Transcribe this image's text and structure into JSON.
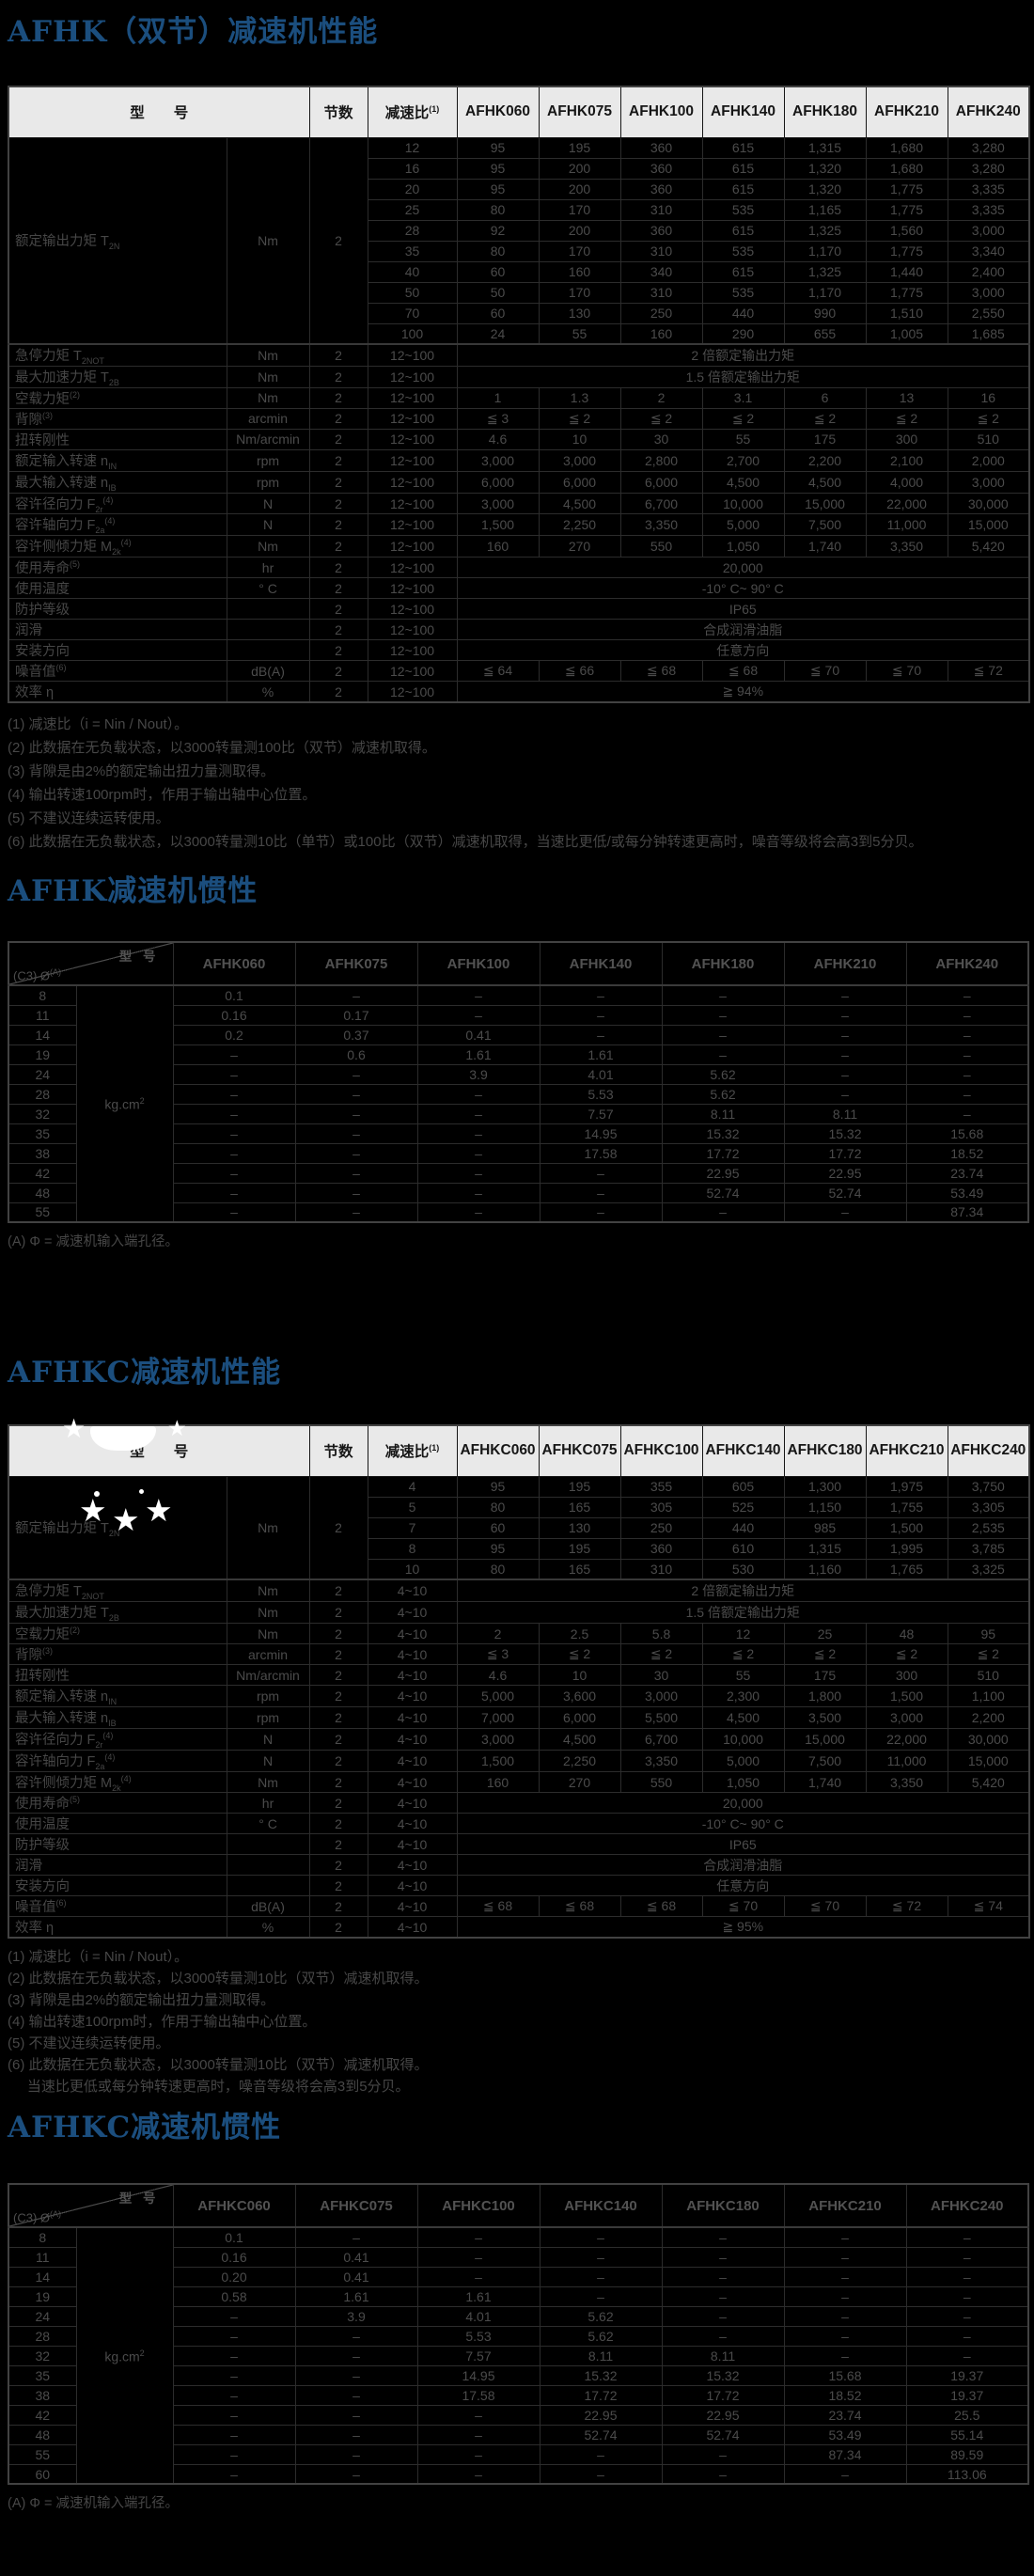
{
  "decor": {
    "star_glyph": "★"
  },
  "afhk_perf": {
    "title": "AFHK（双节）减速机性能",
    "header": {
      "model": "型　　号",
      "stages": "节数",
      "ratio": "减速比",
      "ratio_sup": "(1)"
    },
    "models": [
      "AFHK060",
      "AFHK075",
      "AFHK100",
      "AFHK140",
      "AFHK180",
      "AFHK210",
      "AFHK240"
    ],
    "stages_value": "2",
    "ratio_range": "12~100",
    "torque": {
      "label": "额定输出力矩 T",
      "sub": "2N",
      "unit": "Nm",
      "rows": [
        {
          "ratio": "12",
          "values": [
            "95",
            "195",
            "360",
            "615",
            "1,315",
            "1,680",
            "3,280"
          ]
        },
        {
          "ratio": "16",
          "values": [
            "95",
            "200",
            "360",
            "615",
            "1,320",
            "1,680",
            "3,280"
          ]
        },
        {
          "ratio": "20",
          "values": [
            "95",
            "200",
            "360",
            "615",
            "1,320",
            "1,775",
            "3,335"
          ]
        },
        {
          "ratio": "25",
          "values": [
            "80",
            "170",
            "310",
            "535",
            "1,165",
            "1,775",
            "3,335"
          ]
        },
        {
          "ratio": "28",
          "values": [
            "92",
            "200",
            "360",
            "615",
            "1,325",
            "1,560",
            "3,000"
          ]
        },
        {
          "ratio": "35",
          "values": [
            "80",
            "170",
            "310",
            "535",
            "1,170",
            "1,775",
            "3,340"
          ]
        },
        {
          "ratio": "40",
          "values": [
            "60",
            "160",
            "340",
            "615",
            "1,325",
            "1,440",
            "2,400"
          ]
        },
        {
          "ratio": "50",
          "values": [
            "50",
            "170",
            "310",
            "535",
            "1,170",
            "1,775",
            "3,000"
          ]
        },
        {
          "ratio": "70",
          "values": [
            "60",
            "130",
            "250",
            "440",
            "990",
            "1,510",
            "2,550"
          ]
        },
        {
          "ratio": "100",
          "values": [
            "24",
            "55",
            "160",
            "290",
            "655",
            "1,005",
            "1,685"
          ]
        }
      ]
    },
    "specs": [
      {
        "label": "急停力矩 T",
        "sub": "2NOT",
        "unit": "Nm",
        "span": "2 倍额定输出力矩"
      },
      {
        "label": "最大加速力矩 T",
        "sub": "2B",
        "unit": "Nm",
        "span": "1.5 倍额定输出力矩"
      },
      {
        "label": "空载力矩",
        "sup": "(2)",
        "unit": "Nm",
        "values": [
          "1",
          "1.3",
          "2",
          "3.1",
          "6",
          "13",
          "16"
        ]
      },
      {
        "label": "背隙",
        "sup": "(3)",
        "unit": "arcmin",
        "values": [
          "≦ 3",
          "≦ 2",
          "≦ 2",
          "≦ 2",
          "≦ 2",
          "≦ 2",
          "≦ 2"
        ]
      },
      {
        "label": "扭转刚性",
        "unit": "Nm/arcmin",
        "values": [
          "4.6",
          "10",
          "30",
          "55",
          "175",
          "300",
          "510"
        ]
      },
      {
        "label": "额定输入转速 n",
        "sub": "IN",
        "unit": "rpm",
        "values": [
          "3,000",
          "3,000",
          "2,800",
          "2,700",
          "2,200",
          "2,100",
          "2,000"
        ]
      },
      {
        "label": "最大输入转速 n",
        "sub": "IB",
        "unit": "rpm",
        "values": [
          "6,000",
          "6,000",
          "6,000",
          "4,500",
          "4,500",
          "4,000",
          "3,000"
        ]
      },
      {
        "label": "容许径向力 F",
        "sub": "2r",
        "sup": "(4)",
        "unit": "N",
        "values": [
          "3,000",
          "4,500",
          "6,700",
          "10,000",
          "15,000",
          "22,000",
          "30,000"
        ]
      },
      {
        "label": "容许轴向力 F",
        "sub": "2a",
        "sup": "(4)",
        "unit": "N",
        "values": [
          "1,500",
          "2,250",
          "3,350",
          "5,000",
          "7,500",
          "11,000",
          "15,000"
        ]
      },
      {
        "label": "容许侧倾力矩 M",
        "sub": "2k",
        "sup": "(4)",
        "unit": "Nm",
        "values": [
          "160",
          "270",
          "550",
          "1,050",
          "1,740",
          "3,350",
          "5,420"
        ]
      },
      {
        "label": "使用寿命",
        "sup": "(5)",
        "unit": "hr",
        "span": "20,000"
      },
      {
        "label": "使用温度",
        "unit": "° C",
        "span": "-10° C~ 90° C"
      },
      {
        "label": "防护等级",
        "unit": "",
        "span": "IP65"
      },
      {
        "label": "润滑",
        "unit": "",
        "span": "合成润滑油脂"
      },
      {
        "label": "安装方向",
        "unit": "",
        "span": "任意方向"
      },
      {
        "label": "噪音值",
        "sup": "(6)",
        "unit": "dB(A)",
        "values": [
          "≦ 64",
          "≦ 66",
          "≦ 68",
          "≦ 68",
          "≦ 70",
          "≦ 70",
          "≦ 72"
        ]
      },
      {
        "label": "效率 η",
        "unit": "%",
        "span": "≧ 94%"
      }
    ],
    "footnotes": [
      "(1) 减速比（i = Nin / Nout）。",
      "(2) 此数据在无负载状态，以3000转量测100比（双节）减速机取得。",
      "(3) 背隙是由2%的额定输出扭力量测取得。",
      "(4) 输出转速100rpm时，作用于输出轴中心位置。",
      "(5) 不建议连续运转使用。",
      "(6) 此数据在无负载状态，以3000转量测10比（单节）或100比（双节）减速机取得，当速比更低/或每分钟转速更高时，噪音等级将会高3到5分贝。"
    ]
  },
  "afhk_inertia": {
    "title": "AFHK减速机惯性",
    "diag": {
      "top": "型 号",
      "bottom": "(C3) Ø",
      "bottom_sup": "(A)"
    },
    "models": [
      "AFHK060",
      "AFHK075",
      "AFHK100",
      "AFHK140",
      "AFHK180",
      "AFHK210",
      "AFHK240"
    ],
    "unit": "kg.cm",
    "unit_sup": "2",
    "rows": [
      {
        "bore": "8",
        "values": [
          "0.1",
          "–",
          "–",
          "–",
          "–",
          "–",
          "–"
        ]
      },
      {
        "bore": "11",
        "values": [
          "0.16",
          "0.17",
          "–",
          "–",
          "–",
          "–",
          "–"
        ]
      },
      {
        "bore": "14",
        "values": [
          "0.2",
          "0.37",
          "0.41",
          "–",
          "–",
          "–",
          "–"
        ]
      },
      {
        "bore": "19",
        "values": [
          "–",
          "0.6",
          "1.61",
          "1.61",
          "–",
          "–",
          "–"
        ]
      },
      {
        "bore": "24",
        "values": [
          "–",
          "–",
          "3.9",
          "4.01",
          "5.62",
          "–",
          "–"
        ]
      },
      {
        "bore": "28",
        "values": [
          "–",
          "–",
          "–",
          "5.53",
          "5.62",
          "–",
          "–"
        ]
      },
      {
        "bore": "32",
        "values": [
          "–",
          "–",
          "–",
          "7.57",
          "8.11",
          "8.11",
          "–"
        ]
      },
      {
        "bore": "35",
        "values": [
          "–",
          "–",
          "–",
          "14.95",
          "15.32",
          "15.32",
          "15.68"
        ]
      },
      {
        "bore": "38",
        "values": [
          "–",
          "–",
          "–",
          "17.58",
          "17.72",
          "17.72",
          "18.52"
        ]
      },
      {
        "bore": "42",
        "values": [
          "–",
          "–",
          "–",
          "–",
          "22.95",
          "22.95",
          "23.74"
        ]
      },
      {
        "bore": "48",
        "values": [
          "–",
          "–",
          "–",
          "–",
          "52.74",
          "52.74",
          "53.49"
        ]
      },
      {
        "bore": "55",
        "values": [
          "–",
          "–",
          "–",
          "–",
          "–",
          "–",
          "87.34"
        ]
      }
    ],
    "footnote": "(A)  Φ = 减速机输入端孔径。"
  },
  "afhkc_perf": {
    "title": "AFHKC减速机性能",
    "header": {
      "model": "型　　号",
      "stages": "节数",
      "ratio": "减速比",
      "ratio_sup": "(1)"
    },
    "models": [
      "AFHKC060",
      "AFHKC075",
      "AFHKC100",
      "AFHKC140",
      "AFHKC180",
      "AFHKC210",
      "AFHKC240"
    ],
    "stages_value": "2",
    "ratio_range": "4~10",
    "torque": {
      "label": "额定输出力矩 T",
      "sub": "2N",
      "unit": "Nm",
      "rows": [
        {
          "ratio": "4",
          "values": [
            "95",
            "195",
            "355",
            "605",
            "1,300",
            "1,975",
            "3,750"
          ]
        },
        {
          "ratio": "5",
          "values": [
            "80",
            "165",
            "305",
            "525",
            "1,150",
            "1,755",
            "3,305"
          ]
        },
        {
          "ratio": "7",
          "values": [
            "60",
            "130",
            "250",
            "440",
            "985",
            "1,500",
            "2,535"
          ]
        },
        {
          "ratio": "8",
          "values": [
            "95",
            "195",
            "360",
            "610",
            "1,315",
            "1,995",
            "3,785"
          ]
        },
        {
          "ratio": "10",
          "values": [
            "80",
            "165",
            "310",
            "530",
            "1,160",
            "1,765",
            "3,325"
          ]
        }
      ]
    },
    "specs": [
      {
        "label": "急停力矩 T",
        "sub": "2NOT",
        "unit": "Nm",
        "span": "2 倍额定输出力矩"
      },
      {
        "label": "最大加速力矩 T",
        "sub": "2B",
        "unit": "Nm",
        "span": "1.5 倍额定输出力矩"
      },
      {
        "label": "空载力矩",
        "sup": "(2)",
        "unit": "Nm",
        "values": [
          "2",
          "2.5",
          "5.8",
          "12",
          "25",
          "48",
          "95"
        ]
      },
      {
        "label": "背隙",
        "sup": "(3)",
        "unit": "arcmin",
        "values": [
          "≦ 3",
          "≦ 2",
          "≦ 2",
          "≦ 2",
          "≦ 2",
          "≦ 2",
          "≦ 2"
        ]
      },
      {
        "label": "扭转刚性",
        "unit": "Nm/arcmin",
        "values": [
          "4.6",
          "10",
          "30",
          "55",
          "175",
          "300",
          "510"
        ]
      },
      {
        "label": "额定输入转速 n",
        "sub": "IN",
        "unit": "rpm",
        "values": [
          "5,000",
          "3,600",
          "3,000",
          "2,300",
          "1,800",
          "1,500",
          "1,100"
        ]
      },
      {
        "label": "最大输入转速 n",
        "sub": "IB",
        "unit": "rpm",
        "values": [
          "7,000",
          "6,000",
          "5,500",
          "4,500",
          "3,500",
          "3,000",
          "2,200"
        ]
      },
      {
        "label": "容许径向力 F",
        "sub": "2r",
        "sup": "(4)",
        "unit": "N",
        "values": [
          "3,000",
          "4,500",
          "6,700",
          "10,000",
          "15,000",
          "22,000",
          "30,000"
        ]
      },
      {
        "label": "容许轴向力 F",
        "sub": "2a",
        "sup": "(4)",
        "unit": "N",
        "values": [
          "1,500",
          "2,250",
          "3,350",
          "5,000",
          "7,500",
          "11,000",
          "15,000"
        ]
      },
      {
        "label": "容许侧倾力矩 M",
        "sub": "2k",
        "sup": "(4)",
        "unit": "Nm",
        "values": [
          "160",
          "270",
          "550",
          "1,050",
          "1,740",
          "3,350",
          "5,420"
        ]
      },
      {
        "label": "使用寿命",
        "sup": "(5)",
        "unit": "hr",
        "span": "20,000"
      },
      {
        "label": "使用温度",
        "unit": "° C",
        "span": "-10° C~ 90° C"
      },
      {
        "label": "防护等级",
        "unit": "",
        "span": "IP65"
      },
      {
        "label": "润滑",
        "unit": "",
        "span": "合成润滑油脂"
      },
      {
        "label": "安装方向",
        "unit": "",
        "span": "任意方向"
      },
      {
        "label": "噪音值",
        "sup": "(6)",
        "unit": "dB(A)",
        "values": [
          "≦ 68",
          "≦ 68",
          "≦ 68",
          "≦ 70",
          "≦ 70",
          "≦ 72",
          "≦ 74"
        ]
      },
      {
        "label": "效率 η",
        "unit": "%",
        "span": "≧ 95%"
      }
    ],
    "footnotes": [
      "(1) 减速比（i = Nin / Nout）。",
      "(2) 此数据在无负载状态，以3000转量测10比（双节）减速机取得。",
      "(3) 背隙是由2%的额定输出扭力量测取得。",
      "(4) 输出转速100rpm时，作用于输出轴中心位置。",
      "(5) 不建议连续运转使用。",
      "(6) 此数据在无负载状态，以3000转量测10比（双节）减速机取得。",
      "     当速比更低或每分钟转速更高时，噪音等级将会高3到5分贝。"
    ]
  },
  "afhkc_inertia": {
    "title": "AFHKC减速机惯性",
    "diag": {
      "top": "型 号",
      "bottom": "(C3) Ø",
      "bottom_sup": "(A)"
    },
    "models": [
      "AFHKC060",
      "AFHKC075",
      "AFHKC100",
      "AFHKC140",
      "AFHKC180",
      "AFHKC210",
      "AFHKC240"
    ],
    "unit": "kg.cm",
    "unit_sup": "2",
    "rows": [
      {
        "bore": "8",
        "values": [
          "0.1",
          "–",
          "–",
          "–",
          "–",
          "–",
          "–"
        ]
      },
      {
        "bore": "11",
        "values": [
          "0.16",
          "0.41",
          "–",
          "–",
          "–",
          "–",
          "–"
        ]
      },
      {
        "bore": "14",
        "values": [
          "0.20",
          "0.41",
          "–",
          "–",
          "–",
          "–",
          "–"
        ]
      },
      {
        "bore": "19",
        "values": [
          "0.58",
          "1.61",
          "1.61",
          "–",
          "–",
          "–",
          "–"
        ]
      },
      {
        "bore": "24",
        "values": [
          "–",
          "3.9",
          "4.01",
          "5.62",
          "–",
          "–",
          "–"
        ]
      },
      {
        "bore": "28",
        "values": [
          "–",
          "–",
          "5.53",
          "5.62",
          "–",
          "–",
          "–"
        ]
      },
      {
        "bore": "32",
        "values": [
          "–",
          "–",
          "7.57",
          "8.11",
          "8.11",
          "–",
          "–"
        ]
      },
      {
        "bore": "35",
        "values": [
          "–",
          "–",
          "14.95",
          "15.32",
          "15.32",
          "15.68",
          "19.37"
        ]
      },
      {
        "bore": "38",
        "values": [
          "–",
          "–",
          "17.58",
          "17.72",
          "17.72",
          "18.52",
          "19.37"
        ]
      },
      {
        "bore": "42",
        "values": [
          "–",
          "–",
          "–",
          "22.95",
          "22.95",
          "23.74",
          "25.5"
        ]
      },
      {
        "bore": "48",
        "values": [
          "–",
          "–",
          "–",
          "52.74",
          "52.74",
          "53.49",
          "55.14"
        ]
      },
      {
        "bore": "55",
        "values": [
          "–",
          "–",
          "–",
          "–",
          "–",
          "87.34",
          "89.59"
        ]
      },
      {
        "bore": "60",
        "values": [
          "–",
          "–",
          "–",
          "–",
          "–",
          "–",
          "113.06"
        ]
      }
    ],
    "footnote": "(A)  Φ = 减速机输入端孔径。"
  }
}
